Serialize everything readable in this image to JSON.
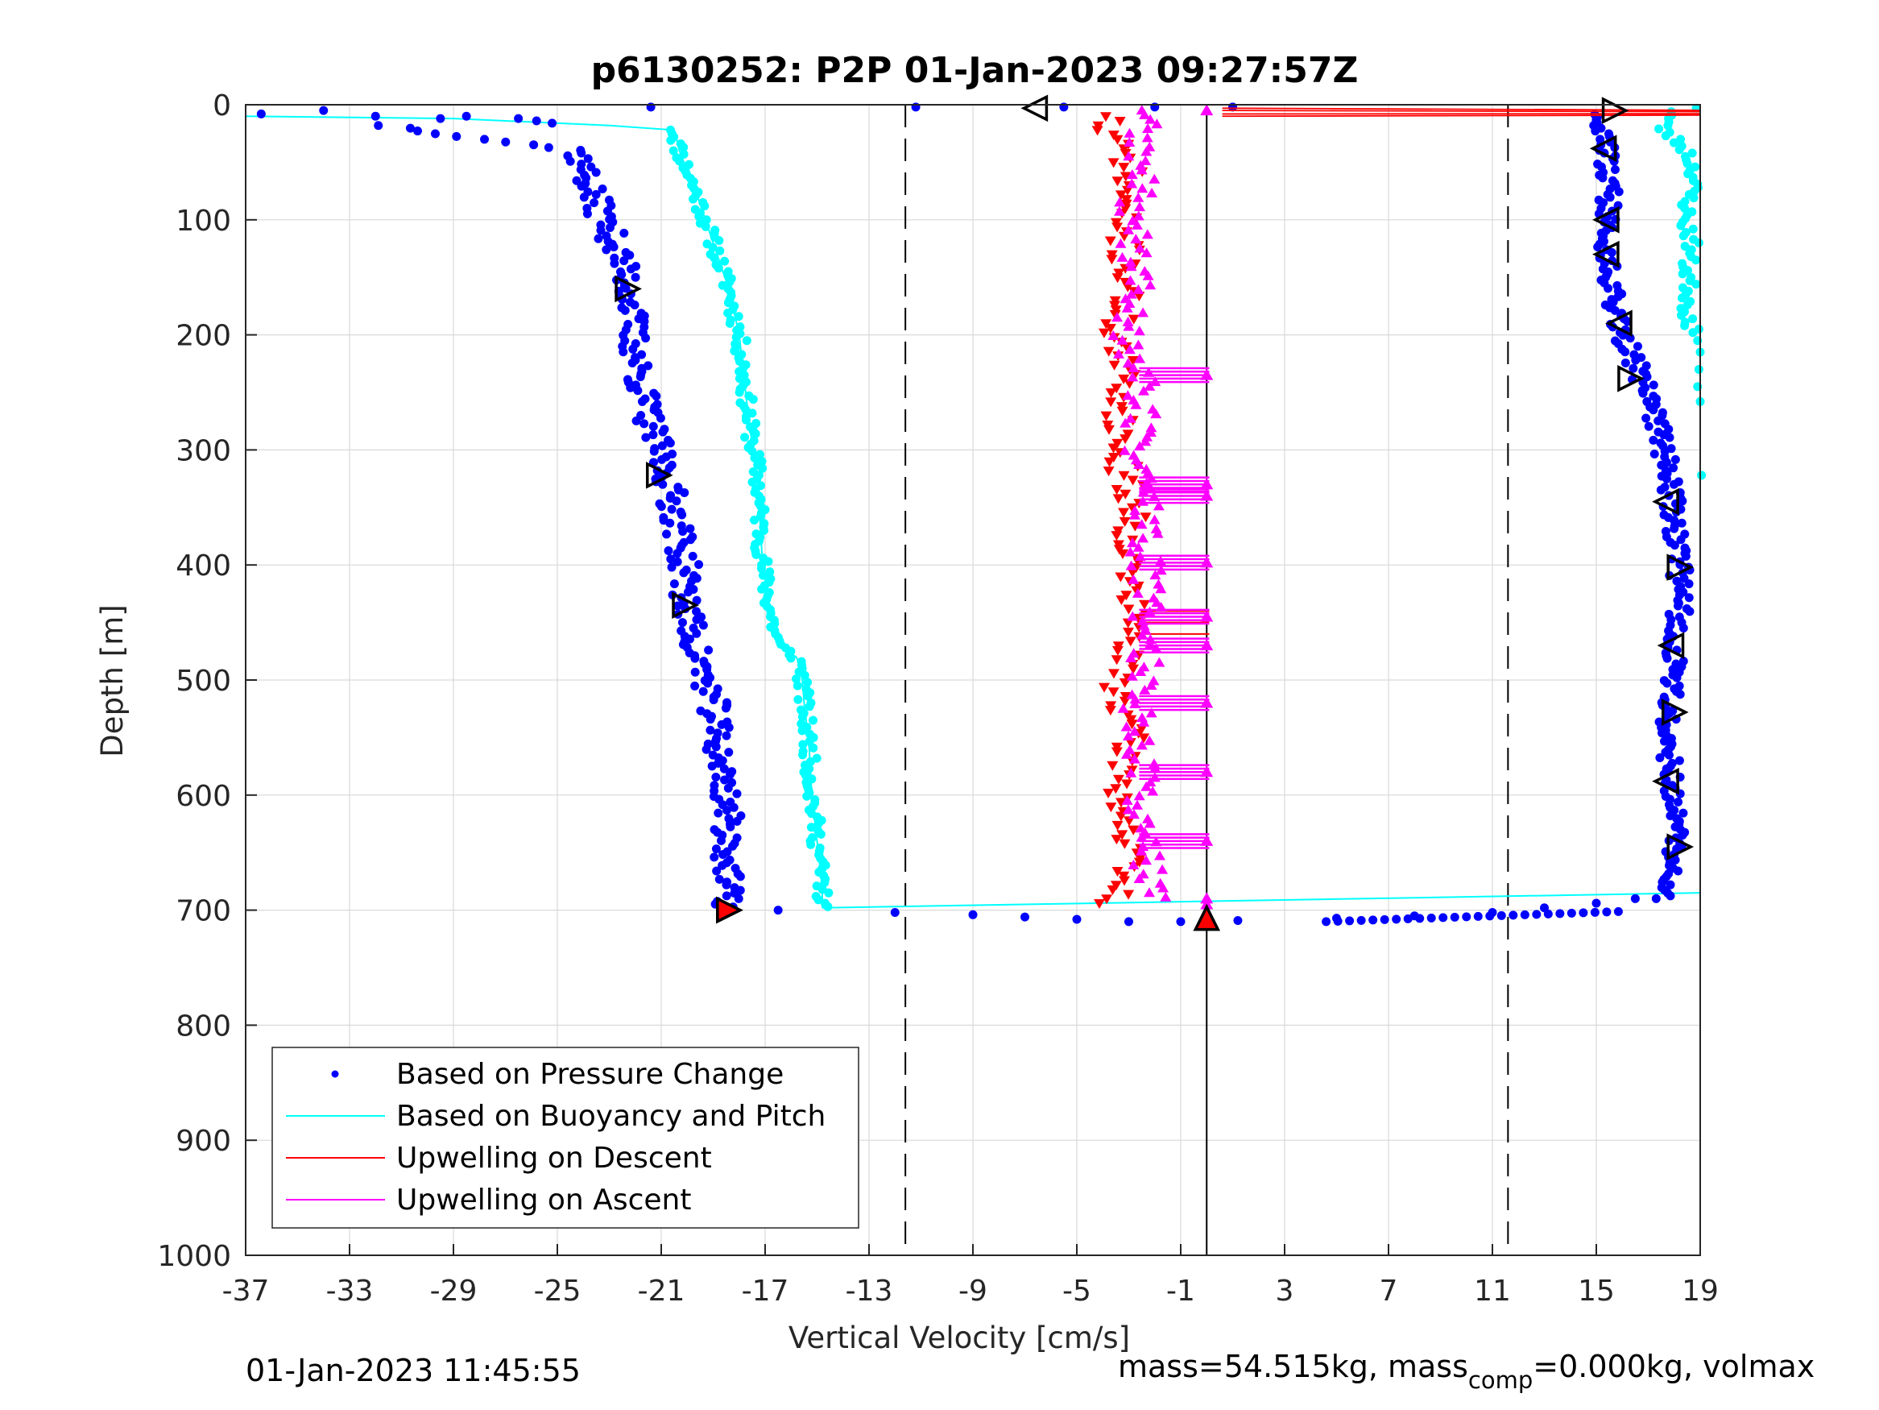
{
  "chart_data": {
    "type": "scatter",
    "title": "p6130252: P2P 01-Jan-2023 09:27:57Z",
    "xlabel": "Vertical Velocity [cm/s]",
    "ylabel": "Depth [m]",
    "xlim": [
      -37,
      19
    ],
    "ylim": [
      0,
      1000
    ],
    "y_reversed": true,
    "grid": true,
    "legend_position": "bottom-left",
    "x_ticks": [
      "-37",
      "-33",
      "-29",
      "-25",
      "-21",
      "-17",
      "-13",
      "-9",
      "-5",
      "-1",
      "3",
      "7",
      "11",
      "15",
      "19"
    ],
    "y_ticks": [
      "0",
      "100",
      "200",
      "300",
      "400",
      "500",
      "600",
      "700",
      "800",
      "900",
      "1000"
    ],
    "reference_lines": [
      {
        "x": -11.6,
        "style": "dashed"
      },
      {
        "x": 0.0,
        "style": "solid"
      },
      {
        "x": 11.6,
        "style": "dashed"
      }
    ],
    "series": [
      {
        "name": "Based on Pressure Change",
        "marker": "dot",
        "color": "#0000ff",
        "descent": {
          "depth": [
            5,
            40,
            80,
            120,
            160,
            200,
            240,
            280,
            320,
            360,
            400,
            440,
            480,
            520,
            560,
            600,
            640,
            680,
            700
          ],
          "x": [
            -36,
            -24.2,
            -23.6,
            -22.8,
            -22.2,
            -22.1,
            -21.8,
            -21.4,
            -20.8,
            -20.4,
            -20.1,
            -20.0,
            -19.6,
            -19.0,
            -18.8,
            -18.5,
            -18.4,
            -18.5,
            -18.4
          ]
        },
        "ascent": {
          "depth": [
            690,
            650,
            600,
            560,
            520,
            480,
            440,
            400,
            360,
            320,
            280,
            240,
            200,
            160,
            120,
            80,
            40,
            10
          ],
          "x": [
            17.5,
            18.0,
            18.0,
            17.8,
            17.8,
            18.0,
            18.2,
            18.2,
            18.0,
            17.8,
            17.4,
            16.8,
            16.0,
            15.6,
            15.4,
            15.5,
            15.4,
            15.0
          ]
        },
        "bottom_turn": {
          "depth": [
            700,
            702,
            704,
            706,
            708,
            710,
            710,
            709,
            707,
            705,
            702,
            698,
            694,
            690
          ],
          "x": [
            -16.5,
            -12,
            -9,
            -7,
            -5,
            -3,
            -1,
            1.2,
            5,
            8,
            11,
            13,
            15,
            16.5
          ]
        },
        "surface": {
          "depth": [
            8,
            5,
            10,
            12,
            10,
            12,
            14,
            16,
            2,
            2,
            2,
            2,
            2
          ],
          "x": [
            -36.4,
            -34,
            -32,
            -29.5,
            -28.5,
            -26.5,
            -25.8,
            -25.2,
            -21.4,
            -11.2,
            -5.5,
            -2,
            1
          ]
        }
      },
      {
        "name": "Based on Buoyancy and Pitch",
        "marker": "line-dot",
        "color": "#00ffff",
        "descent": {
          "depth": [
            10,
            12,
            15,
            18,
            22,
            40,
            80,
            120,
            160,
            200,
            240,
            280,
            320,
            360,
            400,
            440,
            470,
            480,
            490,
            520,
            560,
            600,
            640,
            680,
            698
          ],
          "x": [
            -37,
            -29,
            -26,
            -23,
            -20.5,
            -20.3,
            -19.6,
            -19.0,
            -18.4,
            -18.0,
            -17.8,
            -17.6,
            -17.3,
            -17.2,
            -17.1,
            -16.8,
            -16.5,
            -15.8,
            -15.6,
            -15.5,
            -15.3,
            -15.2,
            -15.0,
            -14.8,
            -14.8
          ]
        },
        "bottom_line": {
          "depth": [
            698,
            685
          ],
          "x": [
            -14.8,
            19
          ]
        },
        "ascent": {
          "depth": [
            5,
            20,
            40,
            60,
            80,
            100,
            120,
            140,
            160,
            180,
            200,
            230,
            260,
            320
          ],
          "x": [
            18,
            17.5,
            18.5,
            18.8,
            18.6,
            18.4,
            18.7,
            18.5,
            18.6,
            18.5,
            18.8,
            18.9,
            19.0,
            19.0
          ]
        }
      },
      {
        "name": "Upwelling on Descent",
        "marker": "triangle-down",
        "color": "#ff0000",
        "depth": [
          15,
          50,
          100,
          150,
          200,
          250,
          300,
          350,
          400,
          450,
          500,
          550,
          600,
          650,
          690
        ],
        "x": [
          -4.2,
          -3.0,
          -3.3,
          -3.0,
          -3.5,
          -3.2,
          -3.4,
          -2.8,
          -3.0,
          -2.8,
          -3.4,
          -3.0,
          -3.3,
          -3.0,
          -3.6
        ]
      },
      {
        "name": "Upwelling on Ascent",
        "marker": "triangle-up",
        "color": "#ff00ff",
        "depth": [
          10,
          50,
          100,
          150,
          200,
          235,
          300,
          335,
          400,
          460,
          520,
          580,
          640,
          680
        ],
        "x": [
          -2.5,
          -2.6,
          -2.8,
          -2.7,
          -3.0,
          -2.5,
          -2.6,
          -2.3,
          -2.4,
          -2.2,
          -2.6,
          -2.5,
          -2.4,
          -2.2
        ]
      }
    ],
    "upwelling_bars": [
      235,
      330,
      340,
      398,
      445,
      470,
      520,
      580,
      640
    ],
    "top_red_lines": {
      "depth": [
        3,
        5,
        8,
        10
      ],
      "x_start": 0.6,
      "x_end": 19
    },
    "black_markers": [
      {
        "x": -6.6,
        "y": 3,
        "dir": "left"
      },
      {
        "x": -22.3,
        "y": 160,
        "dir": "right"
      },
      {
        "x": -21.1,
        "y": 322,
        "dir": "right"
      },
      {
        "x": -20.1,
        "y": 435,
        "dir": "right"
      },
      {
        "x": -18.4,
        "y": 700,
        "dir": "right"
      },
      {
        "x": 15.7,
        "y": 5,
        "dir": "right"
      },
      {
        "x": 15.3,
        "y": 38,
        "dir": "left"
      },
      {
        "x": 15.4,
        "y": 100,
        "dir": "left"
      },
      {
        "x": 15.4,
        "y": 130,
        "dir": "left"
      },
      {
        "x": 15.9,
        "y": 190,
        "dir": "left"
      },
      {
        "x": 16.3,
        "y": 238,
        "dir": "right"
      },
      {
        "x": 17.7,
        "y": 345,
        "dir": "left"
      },
      {
        "x": 18.2,
        "y": 402,
        "dir": "right"
      },
      {
        "x": 17.9,
        "y": 470,
        "dir": "left"
      },
      {
        "x": 18.0,
        "y": 528,
        "dir": "right"
      },
      {
        "x": 17.7,
        "y": 588,
        "dir": "left"
      },
      {
        "x": 18.2,
        "y": 645,
        "dir": "right"
      },
      {
        "x": 0.0,
        "y": 707,
        "dir": "up-filled"
      },
      {
        "x": -18.4,
        "y": 700,
        "dir": "red-filled"
      }
    ]
  },
  "footer": {
    "timestamp": "01-Jan-2023 11:45:55",
    "mass_text": "mass=54.515kg, mass",
    "mass_sub": "comp",
    "mass_rest": "=0.000kg, volmax"
  }
}
